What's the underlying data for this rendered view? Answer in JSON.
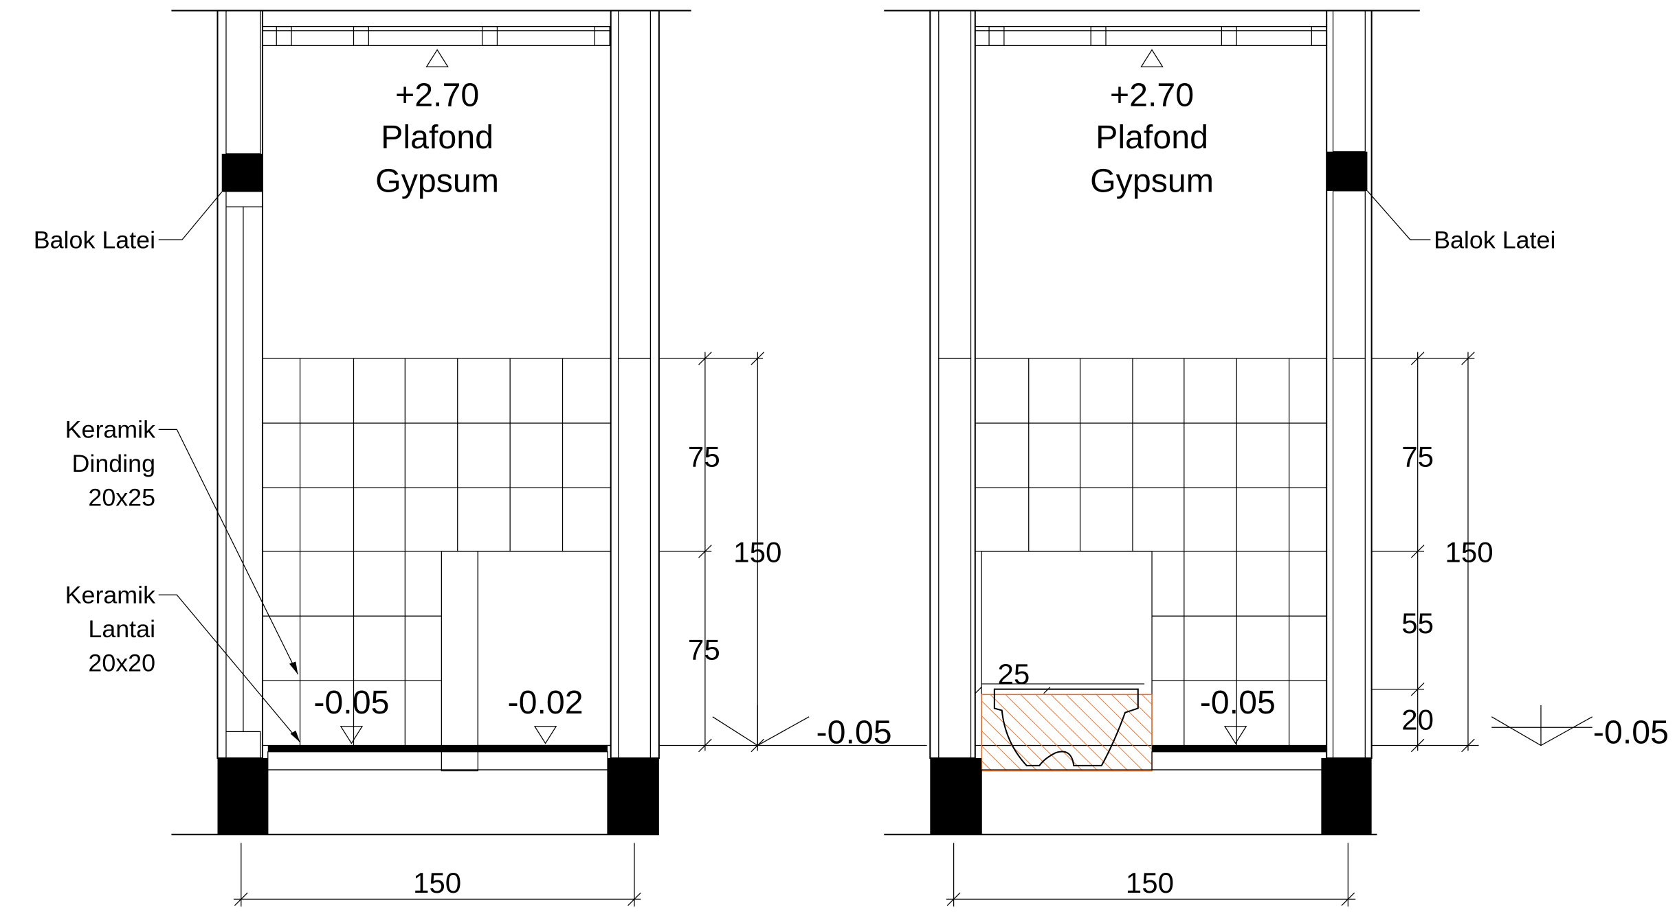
{
  "left": {
    "ceiling": {
      "level": "+2.70",
      "lines": [
        "Plafond",
        "Gypsum"
      ]
    },
    "beam_label": "Balok Latei",
    "wall_tile_label": [
      "Keramik",
      "Dinding",
      "20x25"
    ],
    "floor_tile_label": [
      "Keramik",
      "Lantai",
      "20x20"
    ],
    "floor_levels": [
      "-0.05",
      "-0.02"
    ],
    "outside_level": "-0.05",
    "vertical_dims": [
      "75",
      "75"
    ],
    "total_height_dim": "150",
    "width_dim": "150"
  },
  "right": {
    "ceiling": {
      "level": "+2.70",
      "lines": [
        "Plafond",
        "Gypsum"
      ]
    },
    "beam_label": "Balok Latei",
    "toilet_dim": "25",
    "floor_level": "-0.05",
    "outside_level": "-0.05",
    "vertical_dims": [
      "75",
      "55",
      "20"
    ],
    "total_height_dim": "150",
    "width_dim": "150"
  }
}
